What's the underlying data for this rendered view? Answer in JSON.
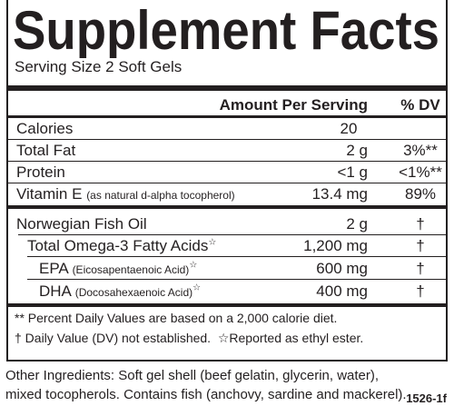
{
  "title": "Supplement Facts",
  "serving_size": "Serving Size 2 Soft Gels",
  "header": {
    "amount": "Amount Per Serving",
    "dv": "% DV"
  },
  "rows": [
    {
      "name": "Calories",
      "amount": "20",
      "dv": ""
    },
    {
      "name": "Total Fat",
      "amount": "2 g",
      "dv": "3%**"
    },
    {
      "name": "Protein",
      "amount": "<1 g",
      "dv": "<1%**"
    },
    {
      "name": "Vitamin E",
      "note": "(as natural d-alpha tocopherol)",
      "amount": "13.4 mg",
      "dv": "89%"
    },
    {
      "name": "Norwegian Fish Oil",
      "amount": "2 g",
      "dv": "†"
    },
    {
      "name": "Total Omega-3 Fatty Acids",
      "mark": "☆",
      "amount": "1,200 mg",
      "dv": "†"
    },
    {
      "name": "EPA",
      "note": "(Eicosapentaenoic Acid)",
      "mark": "☆",
      "amount": "600 mg",
      "dv": "†"
    },
    {
      "name": "DHA",
      "note": "(Docosahexaenoic Acid)",
      "mark": "☆",
      "amount": "400 mg",
      "dv": "†"
    }
  ],
  "footnotes": [
    "** Percent Daily Values are based on a 2,000 calorie diet.",
    "† Daily Value (DV) not established.  ☆Reported as ethyl ester."
  ],
  "other_ingredients": [
    "Other Ingredients: Soft gel shell (beef gelatin, glycerin, water),",
    "mixed tocopherols. Contains fish (anchovy, sardine and mackerel)."
  ],
  "code": "1526-1f"
}
